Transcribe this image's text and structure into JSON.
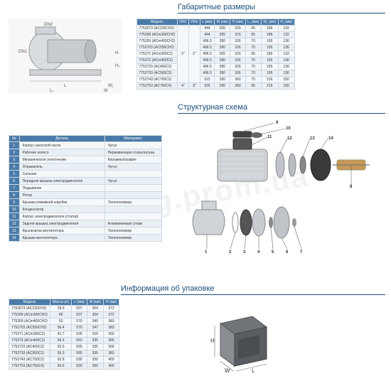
{
  "watermark": "ixtorg.prom.ua",
  "sections": {
    "dims_title": "Габаритные размеры",
    "struct_title": "Структурная схема",
    "pack_title": "Информация об упаковке"
  },
  "dims_table": {
    "headers": [
      "Модель",
      "DN1",
      "DN2",
      "L (мм)",
      "W (мм)",
      "H (мм)",
      "L₁ (мм)",
      "W₁ (мм)",
      "H₁ (мм)"
    ],
    "dn_span": {
      "dn1": "2\"",
      "dn2": "2\"",
      "dn1b": "4\"",
      "dn2b": "3\""
    },
    "rows": [
      [
        "7752673 (AC220CH2)",
        "444",
        "255",
        "315",
        "65",
        "186",
        "132"
      ],
      [
        "775268 (ACm300CH2)",
        "444",
        "255",
        "315",
        "65",
        "186",
        "132"
      ],
      [
        "775269 (ACm400CH2)",
        "496.5",
        "280",
        "326",
        "70",
        "195",
        "136"
      ],
      [
        "7752703 (AC550CH2)",
        "496.5",
        "280",
        "326",
        "70",
        "195",
        "136"
      ],
      [
        "775271 (ACm300C2)",
        "496.5",
        "255",
        "315",
        "65",
        "186",
        "132"
      ],
      [
        "775272 (ACm400C2)",
        "496.5",
        "280",
        "326",
        "70",
        "195",
        "136"
      ],
      [
        "7752723 (AC400C2)",
        "496.5",
        "280",
        "326",
        "70",
        "195",
        "136"
      ],
      [
        "7752733 (AC550C2)",
        "496.5",
        "280",
        "326",
        "70",
        "195",
        "136"
      ],
      [
        "7752743 (AC750C2)",
        "515",
        "290",
        "360",
        "70",
        "216",
        "150"
      ],
      [
        "7752753 (AC750C4)",
        "525",
        "290",
        "360",
        "95",
        "216",
        "150"
      ]
    ]
  },
  "struct_table": {
    "headers": [
      "№",
      "Деталь",
      "Материал"
    ],
    "rows": [
      [
        "1",
        "Корпус насосной части",
        "Чугун"
      ],
      [
        "2",
        "Рабочее колесо",
        "Нержавеющая сталь/латунь"
      ],
      [
        "3",
        "Механическое уплотнение",
        "Керамика/графит"
      ],
      [
        "4",
        "Отражатель",
        "Чугун"
      ],
      [
        "5",
        "Сальник",
        ""
      ],
      [
        "6",
        "Передняя крышка электродвигателя",
        "Чугун"
      ],
      [
        "7",
        "Подшипник",
        ""
      ],
      [
        "8",
        "Ротор",
        ""
      ],
      [
        "9",
        "Крышка клеммной коробки",
        "Технополимер"
      ],
      [
        "10",
        "Конденсатор",
        ""
      ],
      [
        "11",
        "Корпус электродвигателя (статор)",
        ""
      ],
      [
        "12",
        "Задняя крышка электродвигателя",
        "Алюминиевый сплав"
      ],
      [
        "13",
        "Крыльчатка вентилятора",
        "Технополимер"
      ],
      [
        "14",
        "Крышка вентилятора",
        "Технополимер"
      ]
    ]
  },
  "pack_table": {
    "headers": [
      "Модель",
      "Масса (кг)",
      "L (мм)",
      "W (мм)",
      "H (мм)"
    ],
    "rows": [
      [
        "7752673 (AC220CH2)",
        "39.5",
        "507",
        "304",
        "372"
      ],
      [
        "775268 (ACm300CH2)",
        "40",
        "507",
        "304",
        "372"
      ],
      [
        "775269 (ACm400CH2)",
        "53",
        "570",
        "340",
        "383"
      ],
      [
        "7752703 (AC550CH2)",
        "56.4",
        "570",
        "347",
        "383"
      ],
      [
        "775271 (ACm300C2)",
        "41.7",
        "535",
        "310",
        "360"
      ],
      [
        "775272 (ACm400C2)",
        "56.6",
        "563",
        "335",
        "365"
      ],
      [
        "7752723 (AC400C2)",
        "52.5",
        "565",
        "335",
        "366"
      ],
      [
        "7752733 (AC550C2)",
        "56.3",
        "565",
        "335",
        "383"
      ],
      [
        "7752743 (AC750C2)",
        "62.8",
        "590",
        "350",
        "400"
      ],
      [
        "7752753 (AC750C4)",
        "64.6",
        "590",
        "350",
        "400"
      ]
    ]
  },
  "callouts": [
    "9",
    "10",
    "11",
    "12",
    "13",
    "14",
    "1",
    "2",
    "3",
    "4",
    "5",
    "6",
    "7",
    "8"
  ],
  "pack_labels": {
    "H": "H",
    "W": "W",
    "L": "L"
  },
  "dim_labels": {
    "DN2": "DN2",
    "DN1": "DN1",
    "L": "L",
    "L1": "L₁",
    "W": "W",
    "W1": "W₁",
    "H": "H",
    "H1": "H₁"
  },
  "colors": {
    "header_bg": "#4a7ba8",
    "row_even": "#e8eff5",
    "row_odd": "#f5f8fb",
    "border": "#cfd8e0",
    "title": "#1a4d7a"
  }
}
